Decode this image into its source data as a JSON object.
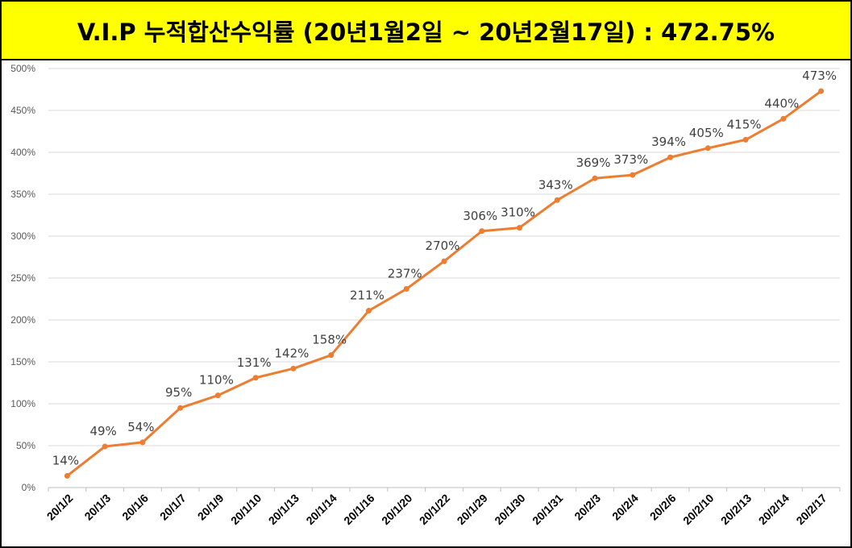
{
  "title": "V.I.P 누적합산수익률 (20년1월2일 ~ 20년2월17일) : 472.75%",
  "colors": {
    "title_background": "#ffff00",
    "line": "#ed7d31",
    "grid": "#d9d9d9"
  },
  "chart_data": {
    "type": "line",
    "categories": [
      "20/1/2",
      "20/1/3",
      "20/1/6",
      "20/1/7",
      "20/1/9",
      "20/1/10",
      "20/1/13",
      "20/1/14",
      "20/1/16",
      "20/1/20",
      "20/1/22",
      "20/1/29",
      "20/1/30",
      "20/1/31",
      "20/2/3",
      "20/2/4",
      "20/2/6",
      "20/2/10",
      "20/2/13",
      "20/2/14",
      "20/2/17"
    ],
    "values": [
      14,
      49,
      54,
      95,
      110,
      131,
      142,
      158,
      211,
      237,
      270,
      306,
      310,
      343,
      369,
      373,
      394,
      405,
      415,
      440,
      473
    ],
    "data_labels": [
      "14%",
      "49%",
      "54%",
      "95%",
      "110%",
      "131%",
      "142%",
      "158%",
      "211%",
      "237%",
      "270%",
      "306%",
      "310%",
      "343%",
      "369%",
      "373%",
      "394%",
      "405%",
      "415%",
      "440%",
      "473%"
    ],
    "y_ticks": [
      0,
      50,
      100,
      150,
      200,
      250,
      300,
      350,
      400,
      450,
      500
    ],
    "y_tick_labels": [
      "0%",
      "50%",
      "100%",
      "150%",
      "200%",
      "250%",
      "300%",
      "350%",
      "400%",
      "450%",
      "500%"
    ],
    "ylim": [
      0,
      500
    ],
    "grid": true,
    "legend": "none"
  }
}
